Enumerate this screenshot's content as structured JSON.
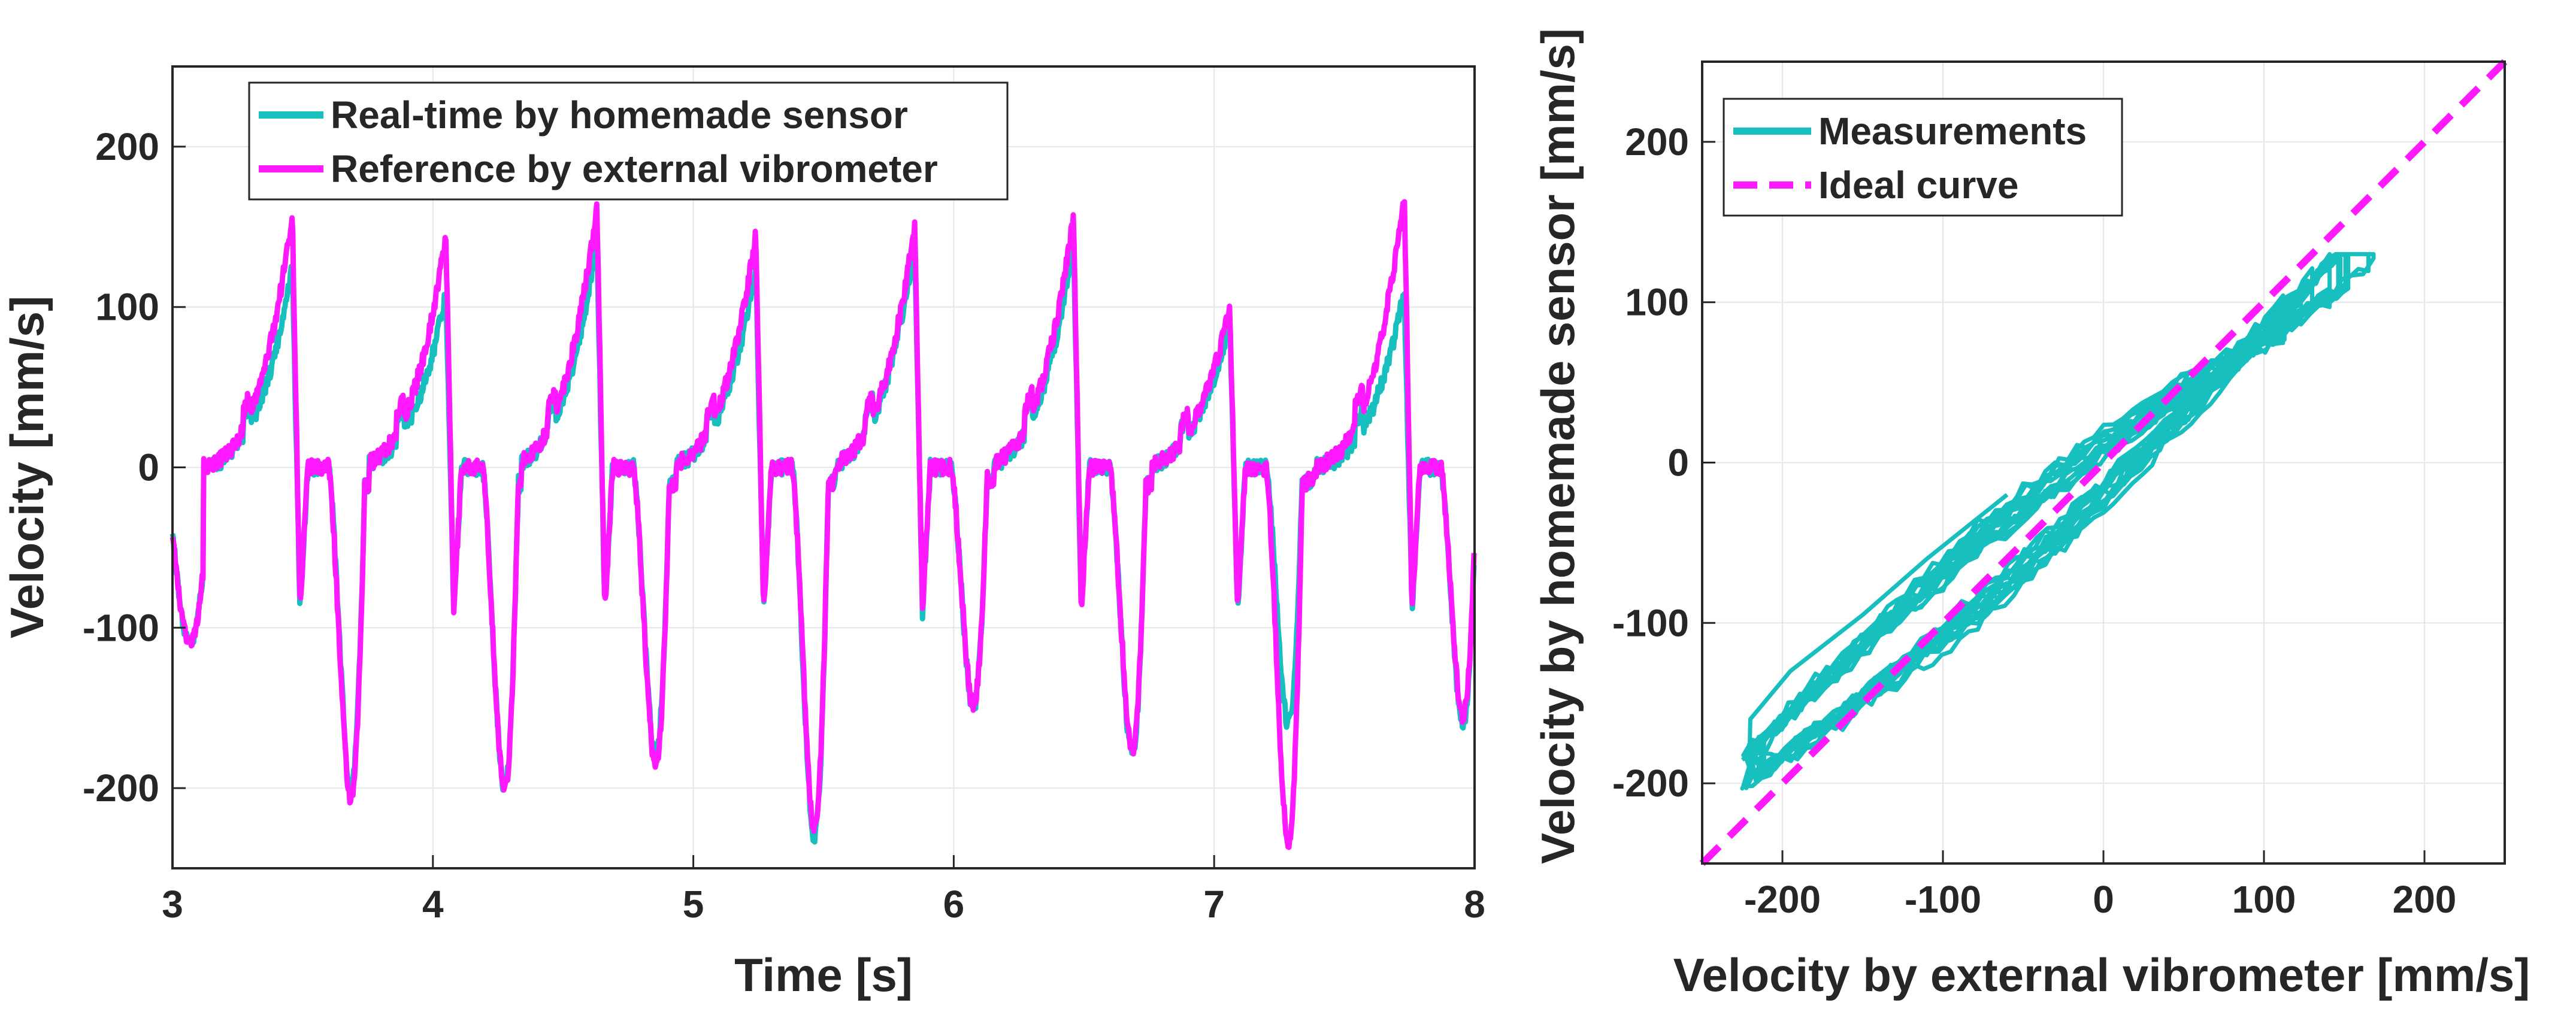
{
  "colors": {
    "measured": "#17bfbf",
    "reference": "#ff19ff",
    "grid": "#e6e6e6",
    "axis": "#262626"
  },
  "chart_data": [
    {
      "type": "line",
      "xlabel": "Time [s]",
      "ylabel": "Velocity [mm/s]",
      "xlim": [
        3,
        8
      ],
      "ylim": [
        -250,
        250
      ],
      "xticks": [
        3,
        4,
        5,
        6,
        7,
        8
      ],
      "yticks": [
        -200,
        -100,
        0,
        100,
        200
      ],
      "grid": true,
      "legend_position": "top-left",
      "cycle_period_s": 0.6,
      "peak_times_s": [
        3.46,
        4.05,
        4.63,
        5.24,
        5.85,
        6.46,
        7.06,
        7.73
      ],
      "series": [
        {
          "name": "Real-time by homemade sensor",
          "color_key": "measured",
          "peaks_mm_s": [
            125,
            108,
            142,
            125,
            140,
            140,
            92,
            110
          ],
          "troughs_mm_s": [
            -200,
            -200,
            -180,
            -230,
            -150,
            -180,
            -160,
            -160
          ]
        },
        {
          "name": "Reference by external vibrometer",
          "color_key": "reference",
          "peaks_mm_s": [
            158,
            145,
            163,
            145,
            150,
            158,
            100,
            172
          ],
          "troughs_mm_s": [
            -207,
            -200,
            -185,
            -225,
            -148,
            -175,
            -233,
            -155
          ]
        }
      ]
    },
    {
      "type": "scatter",
      "xlabel": "Velocity by external vibrometer [mm/s]",
      "ylabel": "Velocity by homemade sensor [mm/s]",
      "xlim": [
        -250,
        250
      ],
      "ylim": [
        -250,
        250
      ],
      "xticks": [
        -200,
        -100,
        0,
        100,
        200
      ],
      "yticks": [
        -200,
        -100,
        0,
        100,
        200
      ],
      "grid": true,
      "legend_position": "top-left",
      "series": [
        {
          "name": "Measurements",
          "color_key": "measured",
          "style": "solid"
        },
        {
          "name": "Ideal curve",
          "color_key": "reference",
          "style": "dashed",
          "x": [
            -250,
            250
          ],
          "y": [
            -250,
            250
          ]
        }
      ]
    }
  ]
}
